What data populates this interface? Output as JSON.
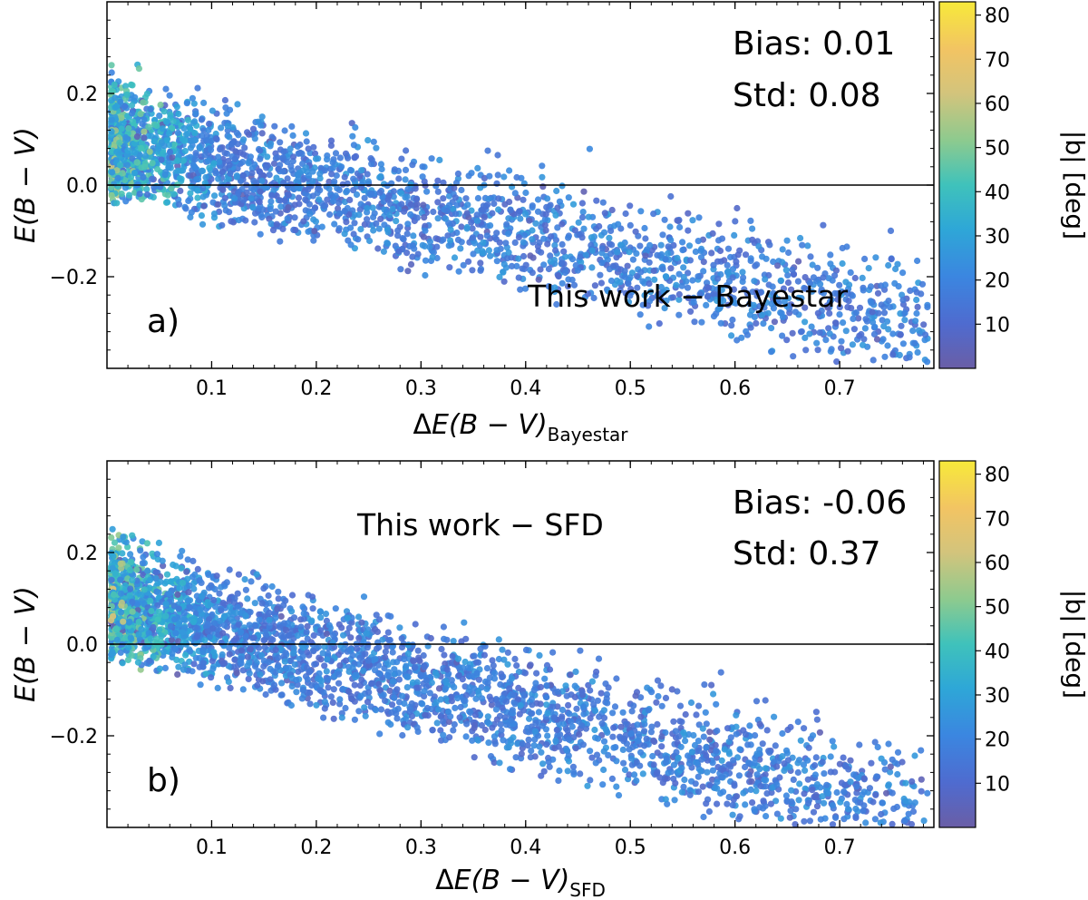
{
  "chart_data": [
    {
      "type": "scatter",
      "panel_letter": "a)",
      "annotation": "This work − Bayestar",
      "stats": {
        "bias": "Bias: 0.01",
        "std": "Std: 0.08"
      },
      "xlabel": {
        "prefix": "Δ",
        "main": "E(B − V)",
        "subscript": "Bayestar"
      },
      "ylabel": "E(B − V)",
      "xlim": [
        0.0,
        0.79
      ],
      "ylim": [
        -0.4,
        0.4
      ],
      "x_ticks": [
        "0.1",
        "0.2",
        "0.3",
        "0.4",
        "0.5",
        "0.6",
        "0.7"
      ],
      "x_tick_values": [
        0.1,
        0.2,
        0.3,
        0.4,
        0.5,
        0.6,
        0.7
      ],
      "y_ticks": [
        "−0.2",
        "0.0",
        "0.2"
      ],
      "y_tick_values": [
        -0.2,
        0.0,
        0.2
      ],
      "hline": 0.0,
      "colorbar": {
        "label": "|b| [deg]",
        "ticks": [
          "10",
          "20",
          "30",
          "40",
          "50",
          "60",
          "70",
          "80"
        ],
        "tick_values": [
          10,
          20,
          30,
          40,
          50,
          60,
          70,
          80
        ],
        "range": [
          0,
          83
        ]
      },
      "distribution": {
        "slope": -0.95,
        "width": 0.42,
        "spread": 0.11,
        "seed": 17,
        "count": 2600
      },
      "points": []
    },
    {
      "type": "scatter",
      "panel_letter": "b)",
      "annotation": "This work − SFD",
      "stats": {
        "bias": "Bias: -0.06",
        "std": "Std: 0.37"
      },
      "xlabel": {
        "prefix": "Δ",
        "main": "E(B − V)",
        "subscript": "SFD"
      },
      "ylabel": "E(B − V)",
      "xlim": [
        0.0,
        0.79
      ],
      "ylim": [
        -0.4,
        0.4
      ],
      "x_ticks": [
        "0.1",
        "0.2",
        "0.3",
        "0.4",
        "0.5",
        "0.6",
        "0.7"
      ],
      "x_tick_values": [
        0.1,
        0.2,
        0.3,
        0.4,
        0.5,
        0.6,
        0.7
      ],
      "y_ticks": [
        "−0.2",
        "0.0",
        "0.2"
      ],
      "y_tick_values": [
        -0.2,
        0.0,
        0.2
      ],
      "hline": 0.0,
      "colorbar": {
        "label": "|b| [deg]",
        "ticks": [
          "10",
          "20",
          "30",
          "40",
          "50",
          "60",
          "70",
          "80"
        ],
        "tick_values": [
          10,
          20,
          30,
          40,
          50,
          60,
          70,
          80
        ],
        "range": [
          0,
          83
        ]
      },
      "distribution": {
        "slope": -1.1,
        "width": 0.42,
        "spread": 0.14,
        "seed": 91,
        "count": 3200
      },
      "points": []
    }
  ]
}
